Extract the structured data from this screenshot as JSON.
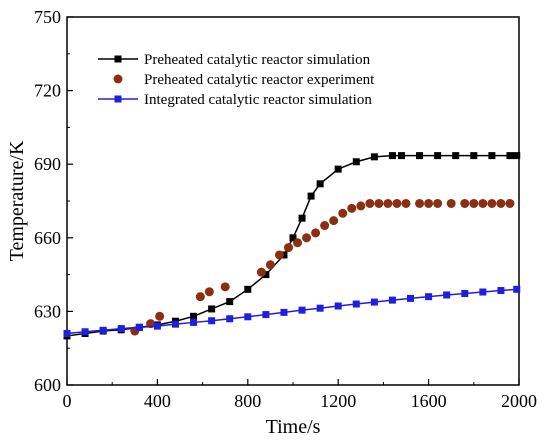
{
  "chart_data": {
    "type": "line",
    "title": "",
    "xlabel": "Time/s",
    "ylabel": "Temperature/K",
    "xlim": [
      0,
      2000
    ],
    "ylim": [
      600,
      750
    ],
    "xticks": [
      0,
      400,
      800,
      1200,
      1600,
      2000
    ],
    "yticks": [
      600,
      630,
      660,
      690,
      720,
      750
    ],
    "grid": false,
    "legend_position": "top-left",
    "series": [
      {
        "name": "Preheated catalytic  reactor simulation",
        "style": "line-square",
        "color": "#000000",
        "x": [
          0,
          80,
          160,
          240,
          320,
          400,
          480,
          560,
          640,
          720,
          800,
          880,
          960,
          1000,
          1040,
          1080,
          1120,
          1200,
          1280,
          1360,
          1440,
          1480,
          1560,
          1640,
          1720,
          1800,
          1880,
          1960,
          1990
        ],
        "y": [
          620,
          621,
          622,
          622.5,
          623.5,
          624.5,
          626,
          628,
          631,
          634,
          639,
          645,
          653,
          660,
          668,
          677,
          682,
          688,
          691,
          693,
          693.5,
          693.5,
          693.5,
          693.5,
          693.5,
          693.5,
          693.5,
          693.5,
          693.5
        ]
      },
      {
        "name": "Preheated catalytic  reactor experiment",
        "style": "scatter-circle",
        "color": "#8B2E12",
        "x": [
          300,
          370,
          410,
          590,
          630,
          700,
          860,
          900,
          940,
          980,
          1020,
          1060,
          1100,
          1140,
          1180,
          1220,
          1260,
          1300,
          1340,
          1380,
          1420,
          1460,
          1500,
          1560,
          1600,
          1640,
          1700,
          1760,
          1800,
          1840,
          1880,
          1920,
          1960
        ],
        "y": [
          622,
          625,
          628,
          636,
          638,
          640,
          646,
          649,
          653,
          656,
          658,
          660,
          662,
          665,
          667,
          670,
          672,
          673,
          674,
          674,
          674,
          674,
          674,
          674,
          674,
          674,
          674,
          674,
          674,
          674,
          674,
          674,
          674
        ]
      },
      {
        "name": "Integrated catalytic reactor simulation",
        "style": "line-square",
        "color": "#1F1FE0",
        "x": [
          0,
          80,
          160,
          240,
          320,
          400,
          480,
          560,
          640,
          720,
          800,
          880,
          960,
          1040,
          1120,
          1200,
          1280,
          1360,
          1440,
          1520,
          1600,
          1680,
          1760,
          1840,
          1920,
          1990
        ],
        "y": [
          621,
          621.7,
          622.3,
          623,
          623.5,
          624,
          624.8,
          625.5,
          626.2,
          627,
          627.8,
          628.7,
          629.6,
          630.5,
          631.3,
          632.2,
          633,
          633.8,
          634.6,
          635.3,
          636,
          636.7,
          637.3,
          637.9,
          638.5,
          639
        ]
      }
    ]
  }
}
